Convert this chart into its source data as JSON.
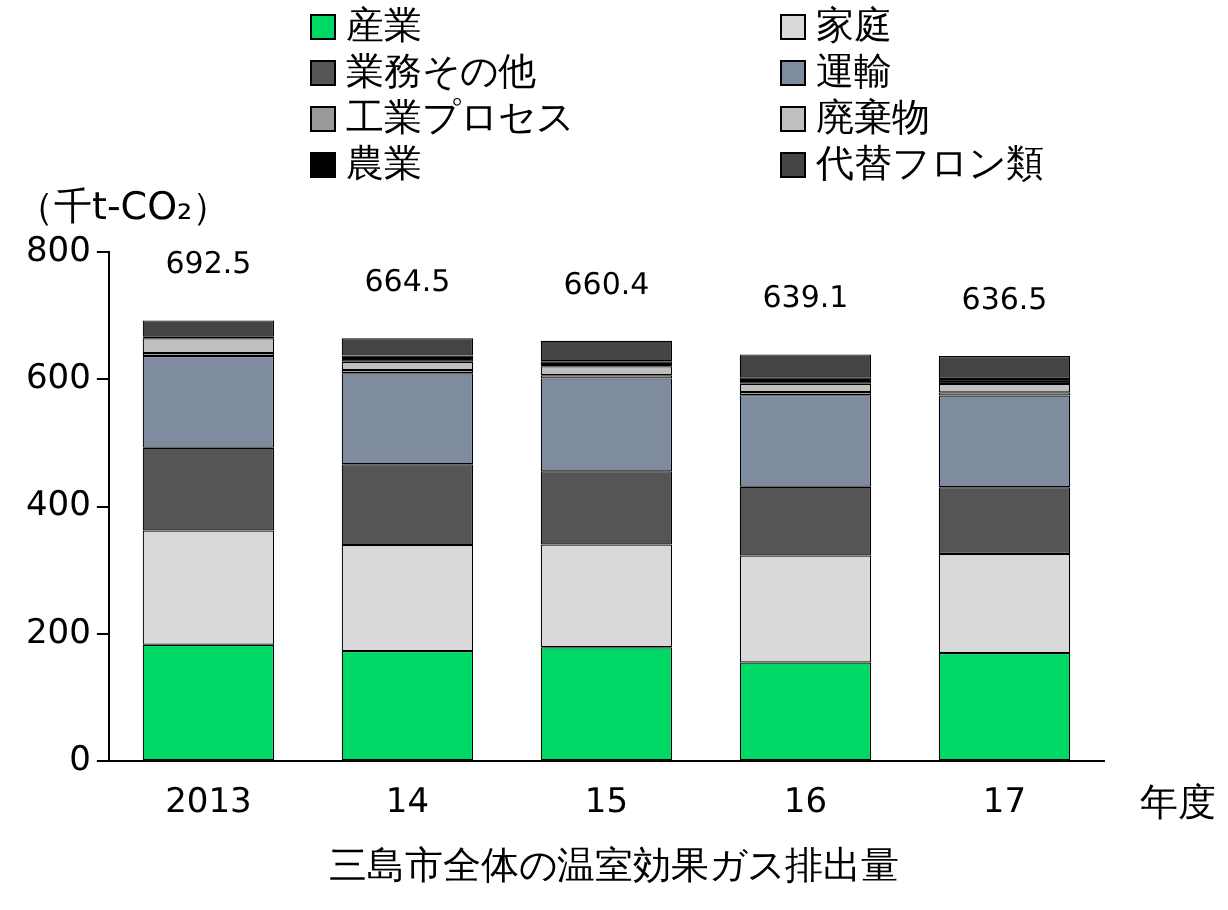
{
  "chart_data": {
    "type": "bar",
    "stacked": true,
    "title": "三島市全体の温室効果ガス排出量",
    "ylabel": "（千t-CO₂）",
    "xlabel": "年度",
    "categories": [
      "2013",
      "14",
      "15",
      "16",
      "17"
    ],
    "series": [
      {
        "name": "産業",
        "color": "#00d866",
        "values": [
          183,
          173,
          179,
          155,
          170
        ]
      },
      {
        "name": "家庭",
        "color": "#d9d9d9",
        "values": [
          179.5,
          166.5,
          161.4,
          168.1,
          155.5
        ]
      },
      {
        "name": "業務その他",
        "color": "#555555",
        "values": [
          130,
          127,
          115,
          108,
          105
        ]
      },
      {
        "name": "運輸",
        "color": "#7f8ca0",
        "values": [
          144,
          143,
          146,
          144,
          144
        ]
      },
      {
        "name": "工業プロセス",
        "color": "#999999",
        "values": [
          5,
          5,
          5,
          5,
          5
        ]
      },
      {
        "name": "廃棄物",
        "color": "#bfbfbf",
        "values": [
          23,
          13,
          14,
          13,
          13
        ]
      },
      {
        "name": "農業",
        "color": "#000000",
        "values": [
          3,
          10,
          8,
          10,
          8
        ]
      },
      {
        "name": "代替フロン類",
        "color": "#444444",
        "values": [
          25,
          27,
          32,
          36,
          36
        ]
      }
    ],
    "totals": [
      "692.5",
      "664.5",
      "660.4",
      "639.1",
      "636.5"
    ],
    "ylim": [
      0,
      800
    ],
    "yticks": [
      0,
      200,
      400,
      600,
      800
    ],
    "grid": false,
    "legend": "top"
  }
}
